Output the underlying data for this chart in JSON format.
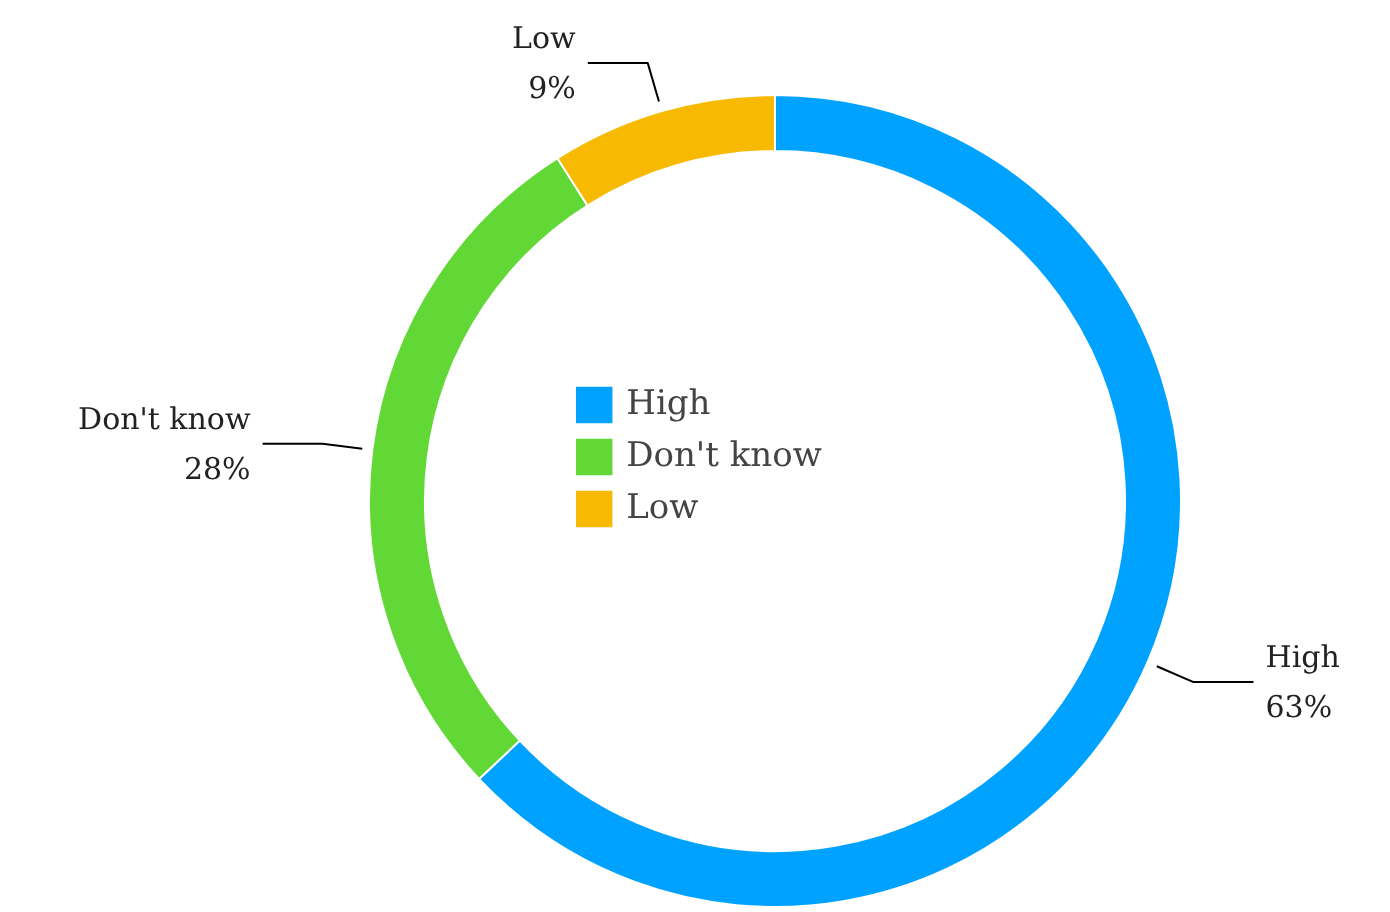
{
  "chart_data": {
    "type": "donut",
    "categories": [
      "High",
      "Don't know",
      "Low"
    ],
    "values": [
      63,
      28,
      9
    ],
    "colors": [
      "#00a2ff",
      "#61d836",
      "#f8ba00"
    ],
    "value_labels": [
      "63%",
      "28%",
      "9%"
    ],
    "legend": "center"
  }
}
